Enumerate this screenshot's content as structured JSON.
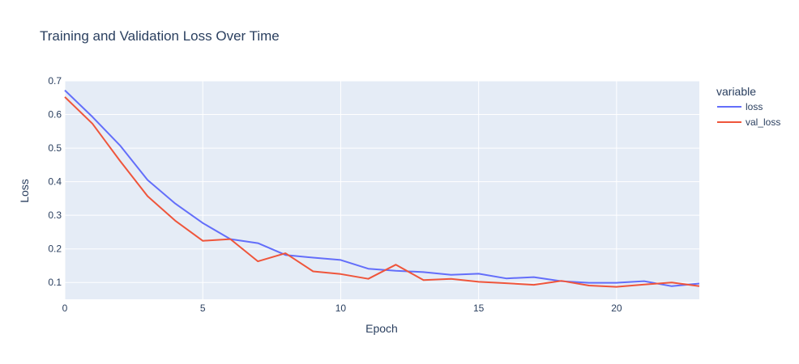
{
  "chart_data": {
    "type": "line",
    "title": "Training and Validation Loss Over Time",
    "xlabel": "Epoch",
    "ylabel": "Loss",
    "xlim": [
      0,
      23
    ],
    "ylim": [
      0.05,
      0.7
    ],
    "xticks": [
      0,
      5,
      10,
      15,
      20
    ],
    "yticks": [
      0.1,
      0.2,
      0.3,
      0.4,
      0.5,
      0.6,
      0.7
    ],
    "grid": true,
    "legend_title": "variable",
    "legend_position": "right",
    "x": [
      0,
      1,
      2,
      3,
      4,
      5,
      6,
      7,
      8,
      9,
      10,
      11,
      12,
      13,
      14,
      15,
      16,
      17,
      18,
      19,
      20,
      21,
      22,
      23
    ],
    "series": [
      {
        "name": "loss",
        "color": "#636efa",
        "values": [
          0.672,
          0.593,
          0.508,
          0.405,
          0.335,
          0.277,
          0.229,
          0.217,
          0.182,
          0.174,
          0.167,
          0.141,
          0.135,
          0.131,
          0.123,
          0.126,
          0.112,
          0.116,
          0.104,
          0.099,
          0.099,
          0.104,
          0.089,
          0.097
        ]
      },
      {
        "name": "val_loss",
        "color": "#ef553b",
        "values": [
          0.652,
          0.573,
          0.462,
          0.357,
          0.284,
          0.224,
          0.229,
          0.163,
          0.187,
          0.133,
          0.125,
          0.111,
          0.153,
          0.107,
          0.111,
          0.102,
          0.098,
          0.093,
          0.105,
          0.091,
          0.087,
          0.094,
          0.1,
          0.089
        ]
      }
    ]
  },
  "colors": {
    "plot_bg": "#e5ecf6",
    "grid": "#ffffff",
    "text": "#2a3f5f"
  }
}
